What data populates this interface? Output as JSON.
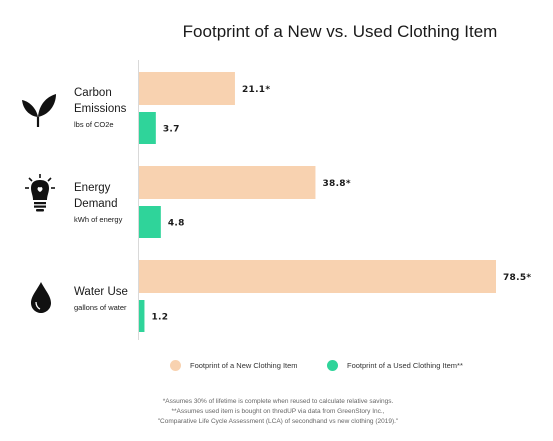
{
  "chart_data": {
    "type": "bar",
    "orientation": "horizontal",
    "title": "Footprint of a New vs. Used Clothing Item",
    "categories": [
      {
        "name_lines": [
          "Carbon",
          "Emissions"
        ],
        "unit": "lbs of CO2e",
        "icon": "leaf-icon"
      },
      {
        "name_lines": [
          "Energy",
          "Demand"
        ],
        "unit": "kWh of energy",
        "icon": "lightbulb-icon"
      },
      {
        "name_lines": [
          "Water Use"
        ],
        "unit": "gallons of water",
        "icon": "water-drop-icon"
      }
    ],
    "series": [
      {
        "name": "Footprint of a New Clothing Item",
        "color": "#f8d2b0",
        "values": [
          21.1,
          38.8,
          78.5
        ],
        "labels": [
          "21.1*",
          "38.8*",
          "78.5*"
        ]
      },
      {
        "name": "Footprint of a Used Clothing Item**",
        "color": "#2fd49a",
        "values": [
          3.7,
          4.8,
          1.2
        ],
        "labels": [
          "3.7",
          "4.8",
          "1.2"
        ]
      }
    ],
    "xlim": [
      0,
      78.5
    ],
    "grid": false,
    "legend_position": "bottom"
  },
  "notes": [
    "*Assumes 30% of lifetime is complete when reused to calculate relative savings.",
    "**Assumes used item is bought on thredUP via data from GreenStory Inc.,",
    "\"Comparative Life Cycle Assessment (LCA) of secondhand vs new clothing (2019).\""
  ]
}
